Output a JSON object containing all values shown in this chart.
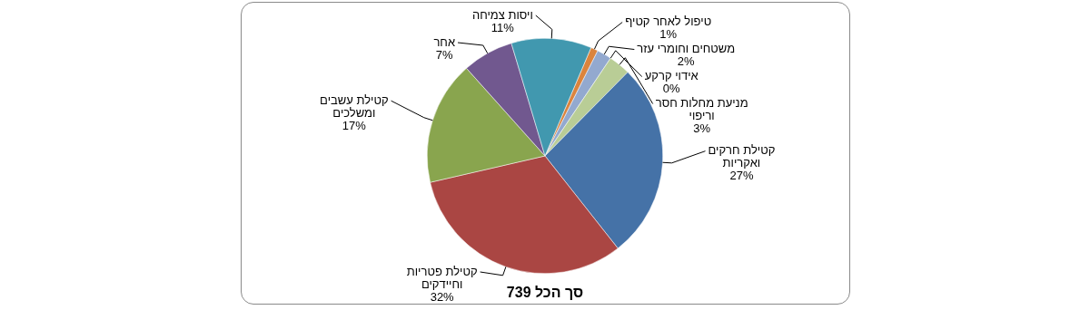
{
  "chart_data": {
    "type": "pie",
    "categories": [
      "טיפול לאחר קטיף",
      "משטחים וחומרי עזר",
      "אידוי קרקע",
      "מניעת מחלות חסר וריפוי",
      "קטילת חרקים ואקריות",
      "קטילת פטריות וחיידקים",
      "קטילת עשבים ומשלכים",
      "אחר",
      "ויסות צמיחה"
    ],
    "values": [
      1,
      2,
      0,
      3,
      27,
      32,
      17,
      7,
      11
    ],
    "value_labels": [
      "1%",
      "2%",
      "0%",
      "3%",
      "27%",
      "32%",
      "17%",
      "7%",
      "11%"
    ],
    "colors": [
      "#db843d",
      "#93a9cf",
      "#d19392",
      "#b9cd96",
      "#4572a7",
      "#aa4643",
      "#89a54e",
      "#71588f",
      "#4198af"
    ],
    "legend": false,
    "annotations": [
      "סך הכל 739"
    ]
  }
}
